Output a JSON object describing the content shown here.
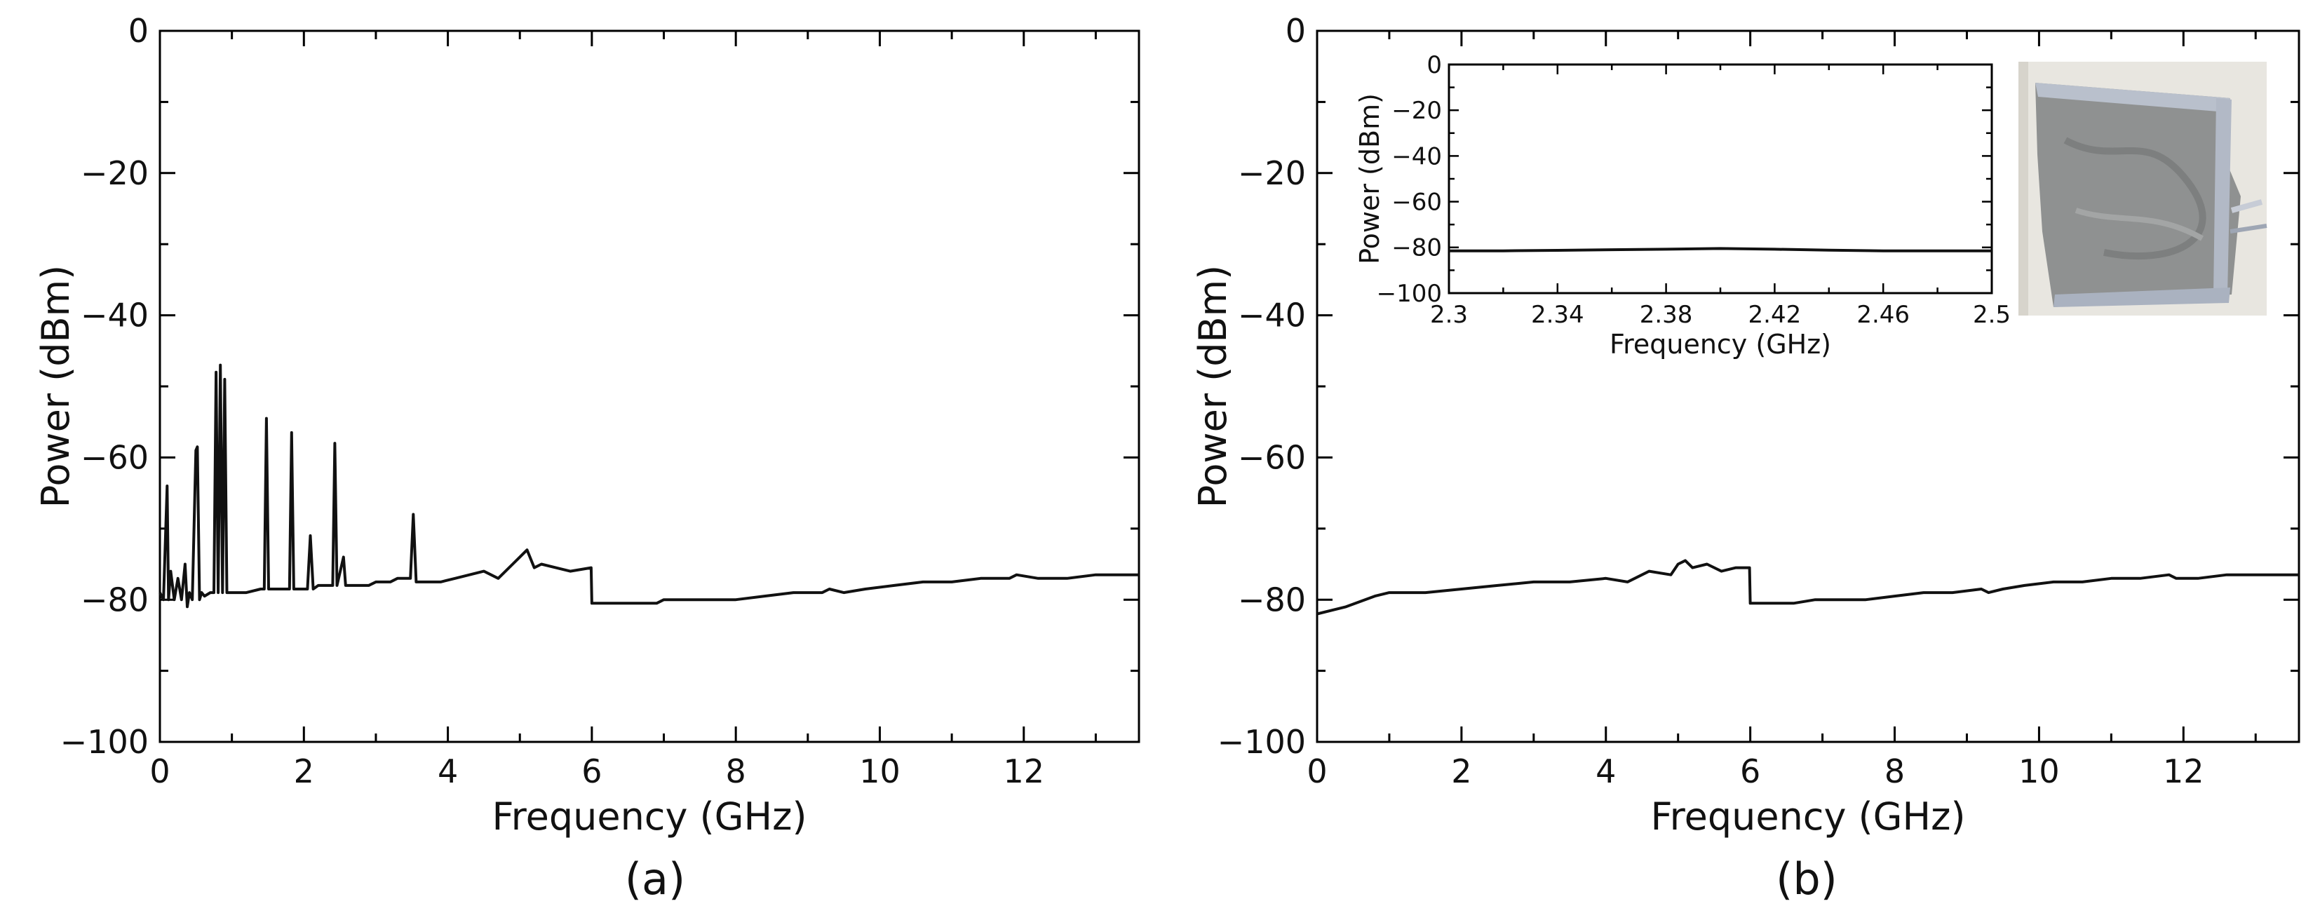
{
  "chart_data": [
    {
      "panel": "(a)",
      "type": "line",
      "xlabel": "Frequency (GHz)",
      "ylabel": "Power (dBm)",
      "xlim": [
        0,
        13.6
      ],
      "ylim": [
        -100,
        0
      ],
      "xticks": [
        0,
        2,
        4,
        6,
        8,
        10,
        12
      ],
      "yticks": [
        0,
        -20,
        -40,
        -60,
        -80,
        -100
      ],
      "grid": false,
      "series": [
        {
          "color": "#111111",
          "x": [
            0.0,
            0.05,
            0.1,
            0.12,
            0.15,
            0.2,
            0.25,
            0.3,
            0.35,
            0.38,
            0.41,
            0.45,
            0.5,
            0.52,
            0.55,
            0.58,
            0.62,
            0.7,
            0.75,
            0.78,
            0.81,
            0.84,
            0.87,
            0.9,
            0.93,
            0.96,
            1.0,
            1.2,
            1.4,
            1.45,
            1.48,
            1.51,
            1.6,
            1.8,
            1.83,
            1.86,
            1.89,
            2.0,
            2.05,
            2.09,
            2.13,
            2.2,
            2.35,
            2.4,
            2.43,
            2.46,
            2.55,
            2.58,
            2.62,
            2.7,
            2.9,
            3.0,
            3.1,
            3.2,
            3.3,
            3.4,
            3.48,
            3.52,
            3.56,
            3.7,
            3.9,
            4.1,
            4.3,
            4.5,
            4.7,
            4.9,
            5.0,
            5.1,
            5.2,
            5.3,
            5.5,
            5.7,
            5.99,
            6.0,
            6.3,
            6.6,
            6.9,
            7.0,
            7.3,
            7.6,
            8.0,
            8.4,
            8.8,
            9.2,
            9.3,
            9.5,
            9.8,
            10.2,
            10.6,
            11.0,
            11.4,
            11.8,
            11.9,
            12.2,
            12.6,
            13.0,
            13.6
          ],
          "y": [
            -79,
            -80,
            -64,
            -80,
            -76,
            -80,
            -77,
            -80,
            -75,
            -81,
            -79,
            -80,
            -59,
            -58.5,
            -80,
            -79,
            -79.5,
            -79,
            -79,
            -48,
            -79,
            -47,
            -79,
            -49,
            -79,
            -79,
            -79,
            -79,
            -78.5,
            -78.5,
            -54.5,
            -78.5,
            -78.5,
            -78.5,
            -56.5,
            -78.5,
            -78.5,
            -78.5,
            -78.5,
            -71,
            -78.5,
            -78,
            -78,
            -78,
            -58,
            -78,
            -74,
            -78,
            -78,
            -78,
            -78,
            -77.5,
            -77.5,
            -77.5,
            -77,
            -77,
            -77,
            -68,
            -77.5,
            -77.5,
            -77.5,
            -77,
            -76.5,
            -76,
            -77,
            -75,
            -74,
            -73,
            -75.5,
            -75,
            -75.5,
            -76,
            -75.5,
            -80.5,
            -80.5,
            -80.5,
            -80.5,
            -80,
            -80,
            -80,
            -80,
            -79.5,
            -79,
            -79,
            -78.5,
            -79,
            -78.5,
            -78,
            -77.5,
            -77.5,
            -77,
            -77,
            -76.5,
            -77,
            -77,
            -76.5,
            -76.5
          ]
        }
      ]
    },
    {
      "panel": "(b)",
      "type": "line",
      "xlabel": "Frequency (GHz)",
      "ylabel": "Power (dBm)",
      "xlim": [
        0,
        13.6
      ],
      "ylim": [
        -100,
        0
      ],
      "xticks": [
        0,
        2,
        4,
        6,
        8,
        10,
        12
      ],
      "yticks": [
        0,
        -20,
        -40,
        -60,
        -80,
        -100
      ],
      "grid": false,
      "series": [
        {
          "color": "#111111",
          "x": [
            0.0,
            0.4,
            0.8,
            1.0,
            1.5,
            2.0,
            2.5,
            3.0,
            3.5,
            4.0,
            4.3,
            4.6,
            4.9,
            5.0,
            5.1,
            5.2,
            5.4,
            5.6,
            5.8,
            5.99,
            6.0,
            6.3,
            6.6,
            6.9,
            7.0,
            7.3,
            7.6,
            8.0,
            8.4,
            8.8,
            9.2,
            9.3,
            9.5,
            9.8,
            10.2,
            10.6,
            11.0,
            11.4,
            11.8,
            11.9,
            12.2,
            12.6,
            13.0,
            13.6
          ],
          "y": [
            -82,
            -81,
            -79.5,
            -79,
            -79,
            -78.5,
            -78,
            -77.5,
            -77.5,
            -77,
            -77.5,
            -76,
            -76.5,
            -75,
            -74.5,
            -75.5,
            -75,
            -76,
            -75.5,
            -75.5,
            -80.5,
            -80.5,
            -80.5,
            -80,
            -80,
            -80,
            -80,
            -79.5,
            -79,
            -79,
            -78.5,
            -79,
            -78.5,
            -78,
            -77.5,
            -77.5,
            -77,
            -77,
            -76.5,
            -77,
            -77,
            -76.5,
            -76.5,
            -76.5
          ]
        }
      ]
    },
    {
      "panel": "(b) inset",
      "type": "line",
      "xlabel": "Frequency (GHz)",
      "ylabel": "Power (dBm)",
      "xlim": [
        2.3,
        2.5
      ],
      "ylim": [
        -100,
        0
      ],
      "xticks": [
        "2.3",
        "2.34",
        "2.38",
        "2.42",
        "2.46",
        "2.5"
      ],
      "yticks": [
        0,
        -20,
        -40,
        -60,
        -80,
        -100
      ],
      "grid": false,
      "series": [
        {
          "color": "#111111",
          "x": [
            2.3,
            2.32,
            2.34,
            2.36,
            2.38,
            2.4,
            2.42,
            2.44,
            2.46,
            2.48,
            2.5
          ],
          "y": [
            -81.5,
            -81.5,
            -81.3,
            -81,
            -80.8,
            -80.5,
            -80.8,
            -81.2,
            -81.5,
            -81.5,
            -81.5
          ]
        }
      ]
    }
  ],
  "captions": [
    "(a)",
    "(b)"
  ]
}
